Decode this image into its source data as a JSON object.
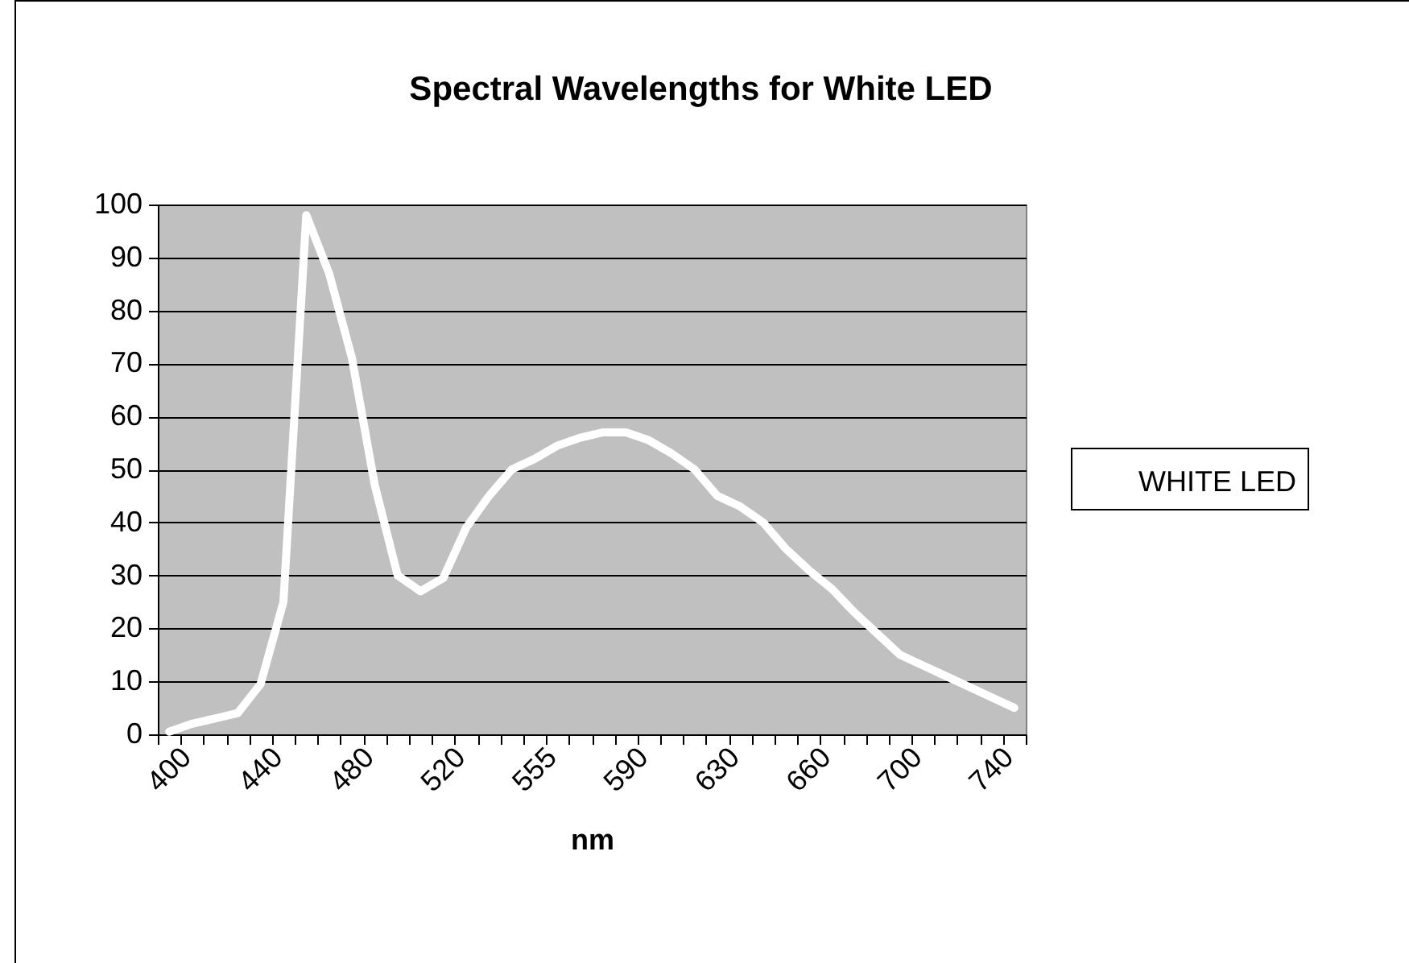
{
  "chart_data": {
    "type": "line",
    "title": "Spectral Wavelengths for White LED",
    "xlabel": "nm",
    "categories": [
      "400",
      null,
      null,
      null,
      "440",
      null,
      null,
      null,
      "480",
      null,
      null,
      null,
      "520",
      null,
      null,
      null,
      "555",
      null,
      null,
      null,
      "590",
      null,
      null,
      null,
      "630",
      null,
      null,
      null,
      "660",
      null,
      null,
      null,
      "700",
      null,
      null,
      null,
      "740",
      null
    ],
    "series": [
      {
        "name": "WHITE LED",
        "color": "#ffffff",
        "values": [
          0.5,
          2,
          3,
          4,
          9.5,
          25,
          98,
          87,
          71,
          47,
          30,
          27,
          29.5,
          39,
          45,
          50,
          52,
          54.5,
          56,
          57,
          57,
          55.5,
          53,
          50,
          45,
          43,
          40,
          35,
          31,
          27.5,
          23,
          19,
          15,
          13,
          11,
          9,
          7,
          5
        ]
      }
    ],
    "ylim": [
      0,
      100
    ],
    "yticks": [
      0,
      10,
      20,
      30,
      40,
      50,
      60,
      70,
      80,
      90,
      100
    ],
    "grid": "y",
    "legend": "right",
    "marker": "none",
    "line_style": "solid"
  }
}
